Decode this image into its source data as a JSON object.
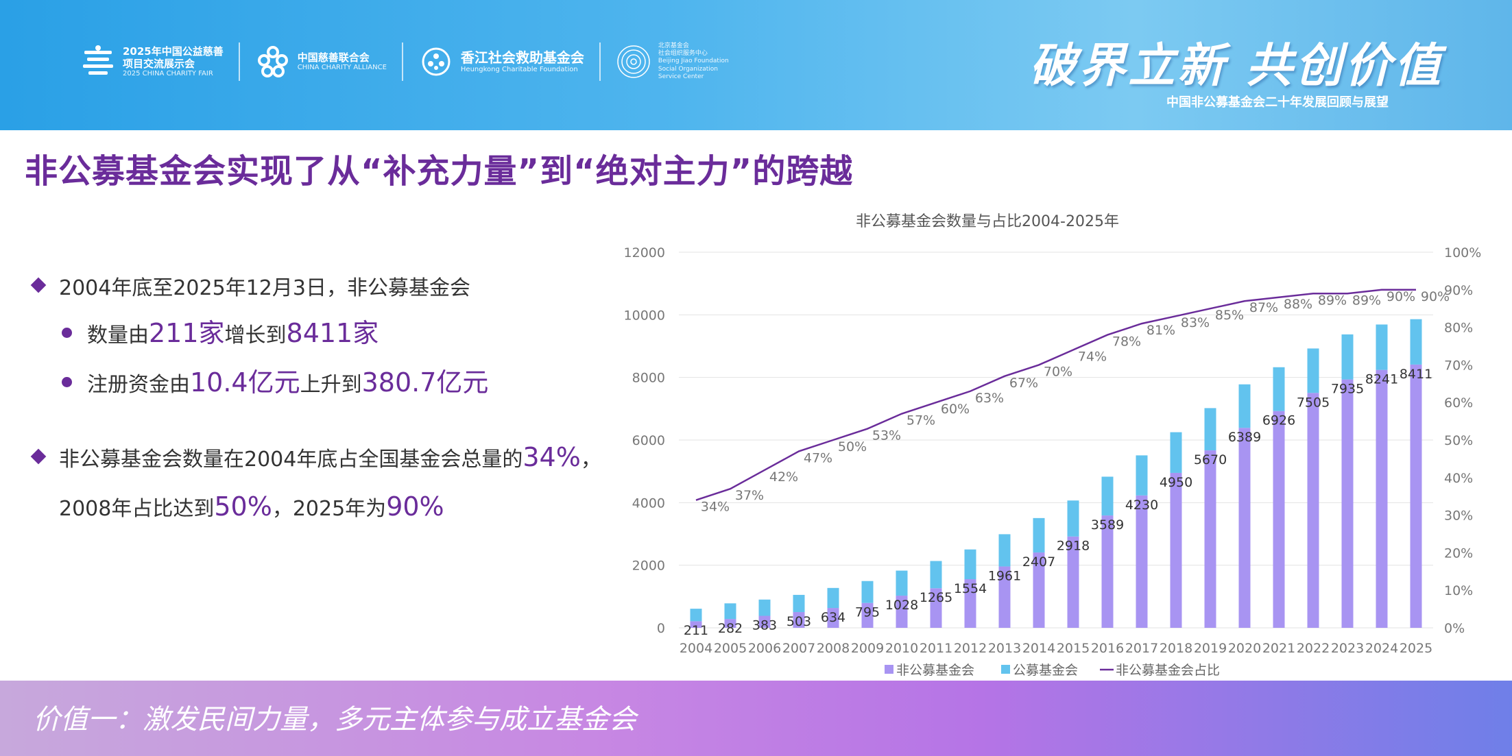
{
  "header": {
    "logos": [
      {
        "main": "2025年中国公益慈善",
        "main2": "项目交流展示会",
        "sub": "2025 CHINA CHARITY FAIR"
      },
      {
        "main": "中国慈善联合会",
        "sub": "CHINA CHARITY ALLIANCE"
      },
      {
        "main": "香江社会救助基金会",
        "sub": "Heungkong Charitable Foundation"
      },
      {
        "main": "北京基金会",
        "main2": "社会组织服务中心",
        "sub": "Beijing Jiao Foundation",
        "sub2": "Social Organization",
        "sub3": "Service Center"
      }
    ],
    "slogan": "破界立新 共创价值",
    "slogan_sub": "中国非公募基金会二十年发展回顾与展望"
  },
  "page_title": "非公募基金会实现了从“补充力量”到“绝对主力”的跨越",
  "bullets": {
    "b1_text": "2004年底至2025年12月3日，非公募基金会",
    "s1_pre": "数量由",
    "s1_v1": "211家",
    "s1_mid": "增长到",
    "s1_v2": "8411家",
    "s2_pre": "注册资金由",
    "s2_v1": "10.4亿元",
    "s2_mid": "上升到",
    "s2_v2": "380.7亿元",
    "b2_pre": "非公募基金会数量在2004年底占全国基金会总量的",
    "b2_v1": "34%",
    "b2_post": "，",
    "b2l2_pre": "2008年占比达到",
    "b2l2_v1": "50%",
    "b2l2_mid": "，2025年为",
    "b2l2_v2": "90%"
  },
  "footer": {
    "text": "价值一：激发民间力量，多元主体参与成立基金会"
  },
  "colors": {
    "purple": "#6a2c9a",
    "bar_private": "#a894f2",
    "bar_public": "#62c3ee",
    "line": "#6a2c9a"
  },
  "chart_data": {
    "type": "bar",
    "title": "非公募基金会数量与占比2004-2025年",
    "categories": [
      "2004",
      "2005",
      "2006",
      "2007",
      "2008",
      "2009",
      "2010",
      "2011",
      "2012",
      "2013",
      "2014",
      "2015",
      "2016",
      "2017",
      "2018",
      "2019",
      "2020",
      "2021",
      "2022",
      "2023",
      "2024",
      "2025"
    ],
    "series": [
      {
        "name": "非公募基金会",
        "kind": "bar",
        "values": [
          211,
          282,
          383,
          503,
          634,
          795,
          1028,
          1265,
          1554,
          1961,
          2407,
          2918,
          3589,
          4230,
          4950,
          5670,
          6389,
          6926,
          7505,
          7935,
          8241,
          8411
        ]
      },
      {
        "name": "公募基金会",
        "kind": "bar",
        "values": [
          400,
          500,
          520,
          550,
          640,
          700,
          800,
          870,
          950,
          1030,
          1100,
          1150,
          1240,
          1280,
          1300,
          1350,
          1390,
          1400,
          1420,
          1440,
          1450,
          1450
        ]
      },
      {
        "name": "非公募基金会占比",
        "kind": "line",
        "axis": "right",
        "values": [
          34,
          37,
          42,
          47,
          50,
          53,
          57,
          60,
          63,
          67,
          70,
          74,
          78,
          81,
          83,
          85,
          87,
          88,
          89,
          89,
          90,
          90
        ]
      }
    ],
    "line_labels": [
      "34%",
      "37%",
      "42%",
      "47%",
      "50%",
      "53%",
      "57%",
      "60%",
      "63%",
      "67%",
      "70%",
      "74%",
      "78%",
      "81%",
      "83%",
      "85%",
      "87%",
      "88%",
      "89%",
      "89%",
      "90%",
      "90%"
    ],
    "y_left": {
      "min": 0,
      "max": 12000,
      "ticks": [
        "0",
        "2000",
        "4000",
        "6000",
        "8000",
        "10000",
        "12000"
      ]
    },
    "y_right": {
      "min": 0,
      "max": 100,
      "ticks": [
        "0%",
        "10%",
        "20%",
        "30%",
        "40%",
        "50%",
        "60%",
        "70%",
        "80%",
        "90%",
        "100%"
      ]
    },
    "legend": [
      "非公募基金会",
      "公募基金会",
      "非公募基金会占比"
    ],
    "stacked": true,
    "grid": true,
    "legend_position": "bottom"
  }
}
